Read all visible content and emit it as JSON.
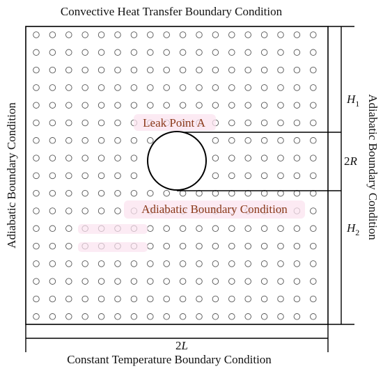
{
  "colors": {
    "line": "#000000",
    "particle": "#555555",
    "inner_label": "#8b3a1a",
    "halo": "#fbe3ef"
  },
  "labels": {
    "top": "Convective Heat Transfer Boundary Condition",
    "bottom": "Constant Temperature Boundary Condition",
    "left": "Adiabatic Boundary Condition",
    "right": "Adiabatic Boundary Condition",
    "leak": "Leak Point A",
    "pipe": "Adiabatic Boundary Condition"
  },
  "dimensions": {
    "h1_letter": "H",
    "h1_sub": "1",
    "r_num": "2",
    "r_letter": "R",
    "h2_letter": "H",
    "h2_sub": "2",
    "width_num": "2",
    "width_letter": "L"
  },
  "particles": {
    "rows": 17,
    "cols": 18
  }
}
